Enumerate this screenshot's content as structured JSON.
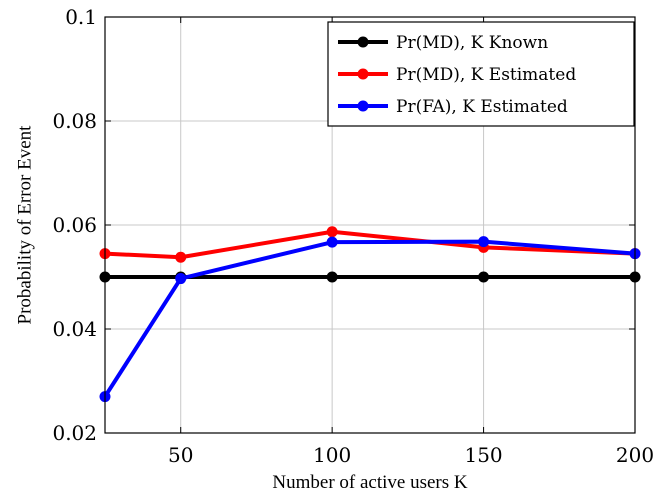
{
  "chart_data": {
    "type": "line",
    "xlabel": "Number of active users K",
    "ylabel": "Probability of Error Event",
    "xlim": [
      25,
      200
    ],
    "ylim": [
      0.02,
      0.1
    ],
    "xticks": [
      50,
      100,
      150,
      200
    ],
    "yticks": [
      0.02,
      0.04,
      0.06,
      0.08,
      0.1
    ],
    "xtick_labels": [
      "50",
      "100",
      "150",
      "200"
    ],
    "ytick_labels": [
      "0.02",
      "0.04",
      "0.06",
      "0.08",
      "0.1"
    ],
    "grid": true,
    "legend_position": "top-right",
    "x": [
      25,
      50,
      100,
      150,
      200
    ],
    "series": [
      {
        "name": "Pr(MD), K Known",
        "color": "#000000",
        "values": [
          0.05,
          0.05,
          0.05,
          0.05,
          0.05
        ]
      },
      {
        "name": "Pr(MD), K Estimated",
        "color": "#ff0000",
        "values": [
          0.0545,
          0.0538,
          0.0587,
          0.0557,
          0.0545
        ]
      },
      {
        "name": "Pr(FA), K Estimated",
        "color": "#0000ff",
        "values": [
          0.027,
          0.0497,
          0.0567,
          0.0568,
          0.0545
        ]
      }
    ]
  }
}
